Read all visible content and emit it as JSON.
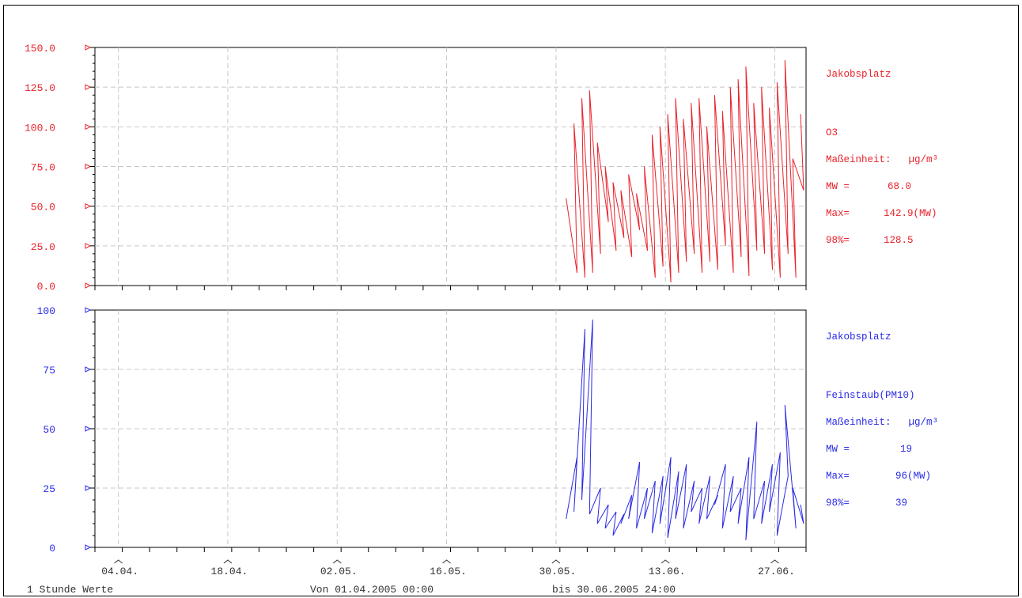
{
  "chart_data": [
    {
      "type": "line",
      "ylim": [
        0,
        150
      ],
      "yticks": [
        "0.0",
        "25.0",
        "50.0",
        "75.0",
        "100.0",
        "125.0",
        "150.0"
      ],
      "color": "#e8222a",
      "station": "Jakobsplatz",
      "component": "O3",
      "unit_label": "Maßeinheit:",
      "unit": "µg/m³",
      "mw_label": "MW =",
      "mw_value": "68.0",
      "max_label": "Max=",
      "max_value": "142.9(MW)",
      "p98_label": "98%=",
      "p98_value": "128.5",
      "series": [
        {
          "x": [
            "2005-05-31",
            "2005-06-01",
            "2005-06-01",
            "2005-06-02",
            "2005-06-02",
            "2005-06-03",
            "2005-06-03",
            "2005-06-04",
            "2005-06-04",
            "2005-06-05",
            "2005-06-05",
            "2005-06-06",
            "2005-06-06",
            "2005-06-07",
            "2005-06-07",
            "2005-06-08",
            "2005-06-08",
            "2005-06-09",
            "2005-06-09",
            "2005-06-10",
            "2005-06-10",
            "2005-06-11",
            "2005-06-11",
            "2005-06-12",
            "2005-06-12",
            "2005-06-13",
            "2005-06-13",
            "2005-06-14",
            "2005-06-14",
            "2005-06-15",
            "2005-06-15",
            "2005-06-16",
            "2005-06-16",
            "2005-06-17",
            "2005-06-17",
            "2005-06-18",
            "2005-06-18",
            "2005-06-19",
            "2005-06-19",
            "2005-06-20",
            "2005-06-20",
            "2005-06-21",
            "2005-06-21",
            "2005-06-22",
            "2005-06-22",
            "2005-06-23",
            "2005-06-23",
            "2005-06-24",
            "2005-06-24",
            "2005-06-25",
            "2005-06-25",
            "2005-06-26",
            "2005-06-26",
            "2005-06-27",
            "2005-06-27",
            "2005-06-28",
            "2005-06-28",
            "2005-06-29",
            "2005-06-29",
            "2005-06-30",
            "2005-06-30"
          ],
          "y": [
            55,
            8,
            102,
            5,
            118,
            8,
            123,
            20,
            90,
            40,
            75,
            22,
            65,
            30,
            60,
            18,
            70,
            35,
            58,
            22,
            75,
            5,
            95,
            12,
            100,
            2,
            108,
            8,
            118,
            15,
            105,
            20,
            115,
            8,
            118,
            15,
            100,
            10,
            120,
            25,
            110,
            8,
            125,
            18,
            130,
            6,
            138,
            22,
            115,
            20,
            125,
            10,
            112,
            5,
            128,
            20,
            142,
            5,
            80,
            60,
            108
          ]
        }
      ]
    },
    {
      "type": "line",
      "ylim": [
        0,
        100
      ],
      "yticks": [
        "0",
        "25",
        "50",
        "75",
        "100"
      ],
      "color": "#2a2ae6",
      "station": "Jakobsplatz",
      "component": "Feinstaub(PM10)",
      "unit_label": "Maßeinheit:",
      "unit": "µg/m³",
      "mw_label": "MW =",
      "mw_value": "19",
      "max_label": "Max=",
      "max_value": "96(MW)",
      "p98_label": "98%=",
      "p98_value": "39",
      "series": [
        {
          "x": [
            "2005-05-31",
            "2005-06-01",
            "2005-06-01",
            "2005-06-02",
            "2005-06-02",
            "2005-06-03",
            "2005-06-03",
            "2005-06-04",
            "2005-06-04",
            "2005-06-05",
            "2005-06-05",
            "2005-06-06",
            "2005-06-06",
            "2005-06-07",
            "2005-06-07",
            "2005-06-08",
            "2005-06-08",
            "2005-06-09",
            "2005-06-09",
            "2005-06-10",
            "2005-06-10",
            "2005-06-11",
            "2005-06-11",
            "2005-06-12",
            "2005-06-12",
            "2005-06-13",
            "2005-06-13",
            "2005-06-14",
            "2005-06-14",
            "2005-06-15",
            "2005-06-15",
            "2005-06-16",
            "2005-06-16",
            "2005-06-17",
            "2005-06-17",
            "2005-06-18",
            "2005-06-18",
            "2005-06-19",
            "2005-06-19",
            "2005-06-20",
            "2005-06-20",
            "2005-06-21",
            "2005-06-21",
            "2005-06-22",
            "2005-06-22",
            "2005-06-23",
            "2005-06-23",
            "2005-06-24",
            "2005-06-24",
            "2005-06-25",
            "2005-06-25",
            "2005-06-26",
            "2005-06-26",
            "2005-06-27",
            "2005-06-27",
            "2005-06-28",
            "2005-06-28",
            "2005-06-29",
            "2005-06-29",
            "2005-06-30",
            "2005-06-30"
          ],
          "y": [
            12,
            38,
            15,
            92,
            20,
            96,
            14,
            25,
            10,
            18,
            8,
            15,
            5,
            14,
            10,
            22,
            12,
            36,
            8,
            25,
            12,
            28,
            6,
            30,
            10,
            38,
            4,
            32,
            12,
            35,
            8,
            28,
            15,
            25,
            10,
            30,
            12,
            22,
            18,
            35,
            8,
            30,
            15,
            25,
            10,
            38,
            3,
            53,
            12,
            28,
            10,
            35,
            15,
            40,
            5,
            30,
            60,
            8,
            25,
            10,
            18
          ]
        }
      ]
    }
  ],
  "xaxis": {
    "start": "2005-04-01",
    "end": "2005-06-30",
    "ticks": [
      {
        "date": "2005-04-04",
        "label": "04.04."
      },
      {
        "date": "2005-04-18",
        "label": "18.04."
      },
      {
        "date": "2005-05-02",
        "label": "02.05."
      },
      {
        "date": "2005-05-16",
        "label": "16.05."
      },
      {
        "date": "2005-05-30",
        "label": "30.05."
      },
      {
        "date": "2005-06-13",
        "label": "13.06."
      },
      {
        "date": "2005-06-27",
        "label": "27.06."
      }
    ]
  },
  "footer": {
    "interval": "1 Stunde Werte",
    "from": "Von 01.04.2005 00:00",
    "to": "bis 30.06.2005 24:00"
  }
}
